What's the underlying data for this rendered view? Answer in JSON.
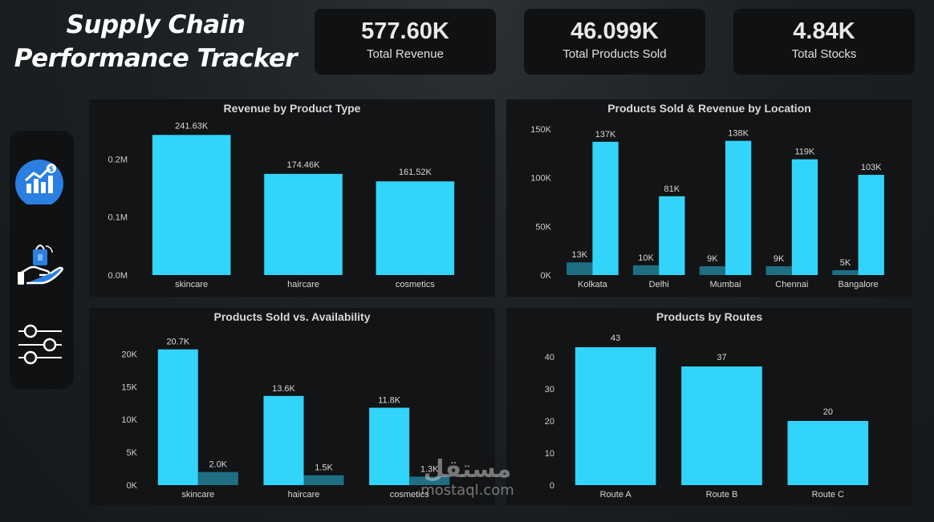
{
  "header": {
    "title_line1": "Supply Chain",
    "title_line2": "Performance Tracker"
  },
  "kpis": [
    {
      "value": "577.60K",
      "label": "Total Revenue"
    },
    {
      "value": "46.099K",
      "label": "Total Products Sold"
    },
    {
      "value": "4.84K",
      "label": "Total Stocks"
    }
  ],
  "sidebar": {
    "items": [
      {
        "icon": "revenue-chart-icon",
        "active": true
      },
      {
        "icon": "hand-shopping-bag-icon",
        "active": false
      },
      {
        "icon": "sliders-filter-icon",
        "active": false
      }
    ]
  },
  "colors": {
    "primary_bar": "#33d4fa",
    "secondary_bar": "#1f6e82",
    "active_nav": "#2a7fe0"
  },
  "watermark": {
    "arabic": "مستقل",
    "latin": "mostaql.com"
  },
  "charts": {
    "revenue_by_type": {
      "title": "Revenue by Product Type",
      "chart_data": {
        "type": "bar",
        "categories": [
          "skincare",
          "haircare",
          "cosmetics"
        ],
        "values": [
          241630,
          174460,
          161520
        ],
        "data_labels": [
          "241.63K",
          "174.46K",
          "161.52K"
        ],
        "yticks": [
          0,
          100000,
          200000
        ],
        "ytick_labels": [
          "0.0M",
          "0.1M",
          "0.2M"
        ],
        "ylim": [
          0,
          260000
        ]
      }
    },
    "location": {
      "title": "Products Sold & Revenue by Location",
      "chart_data": {
        "type": "bar",
        "categories": [
          "Kolkata",
          "Delhi",
          "Mumbai",
          "Chennai",
          "Bangalore"
        ],
        "series": [
          {
            "values": [
              13000,
              10000,
              9000,
              9000,
              5000
            ],
            "labels": [
              "13K",
              "10K",
              "9K",
              "9K",
              "5K"
            ]
          },
          {
            "values": [
              137000,
              81000,
              138000,
              119000,
              103000
            ],
            "labels": [
              "137K",
              "81K",
              "138K",
              "119K",
              "103K"
            ]
          }
        ],
        "yticks": [
          0,
          50000,
          100000,
          150000
        ],
        "ytick_labels": [
          "0K",
          "50K",
          "100K",
          "150K"
        ],
        "ylim": [
          0,
          155000
        ]
      }
    },
    "sold_vs_avail": {
      "title": "Products Sold vs. Availability",
      "chart_data": {
        "type": "bar",
        "categories": [
          "skincare",
          "haircare",
          "cosmetics"
        ],
        "series": [
          {
            "values": [
              20700,
              13600,
              11800
            ],
            "labels": [
              "20.7K",
              "13.6K",
              "11.8K"
            ]
          },
          {
            "values": [
              2000,
              1500,
              1300
            ],
            "labels": [
              "2.0K",
              "1.5K",
              "1.3K"
            ]
          }
        ],
        "yticks": [
          0,
          5000,
          10000,
          15000,
          20000
        ],
        "ytick_labels": [
          "0K",
          "5K",
          "10K",
          "15K",
          "20K"
        ],
        "ylim": [
          0,
          22500
        ]
      }
    },
    "routes": {
      "title": "Products by Routes",
      "chart_data": {
        "type": "bar",
        "categories": [
          "Route A",
          "Route B",
          "Route C"
        ],
        "values": [
          43,
          37,
          20
        ],
        "data_labels": [
          "43",
          "37",
          "20"
        ],
        "yticks": [
          0,
          10,
          20,
          30,
          40
        ],
        "ytick_labels": [
          "0",
          "10",
          "20",
          "30",
          "40"
        ],
        "ylim": [
          0,
          46
        ]
      }
    }
  }
}
